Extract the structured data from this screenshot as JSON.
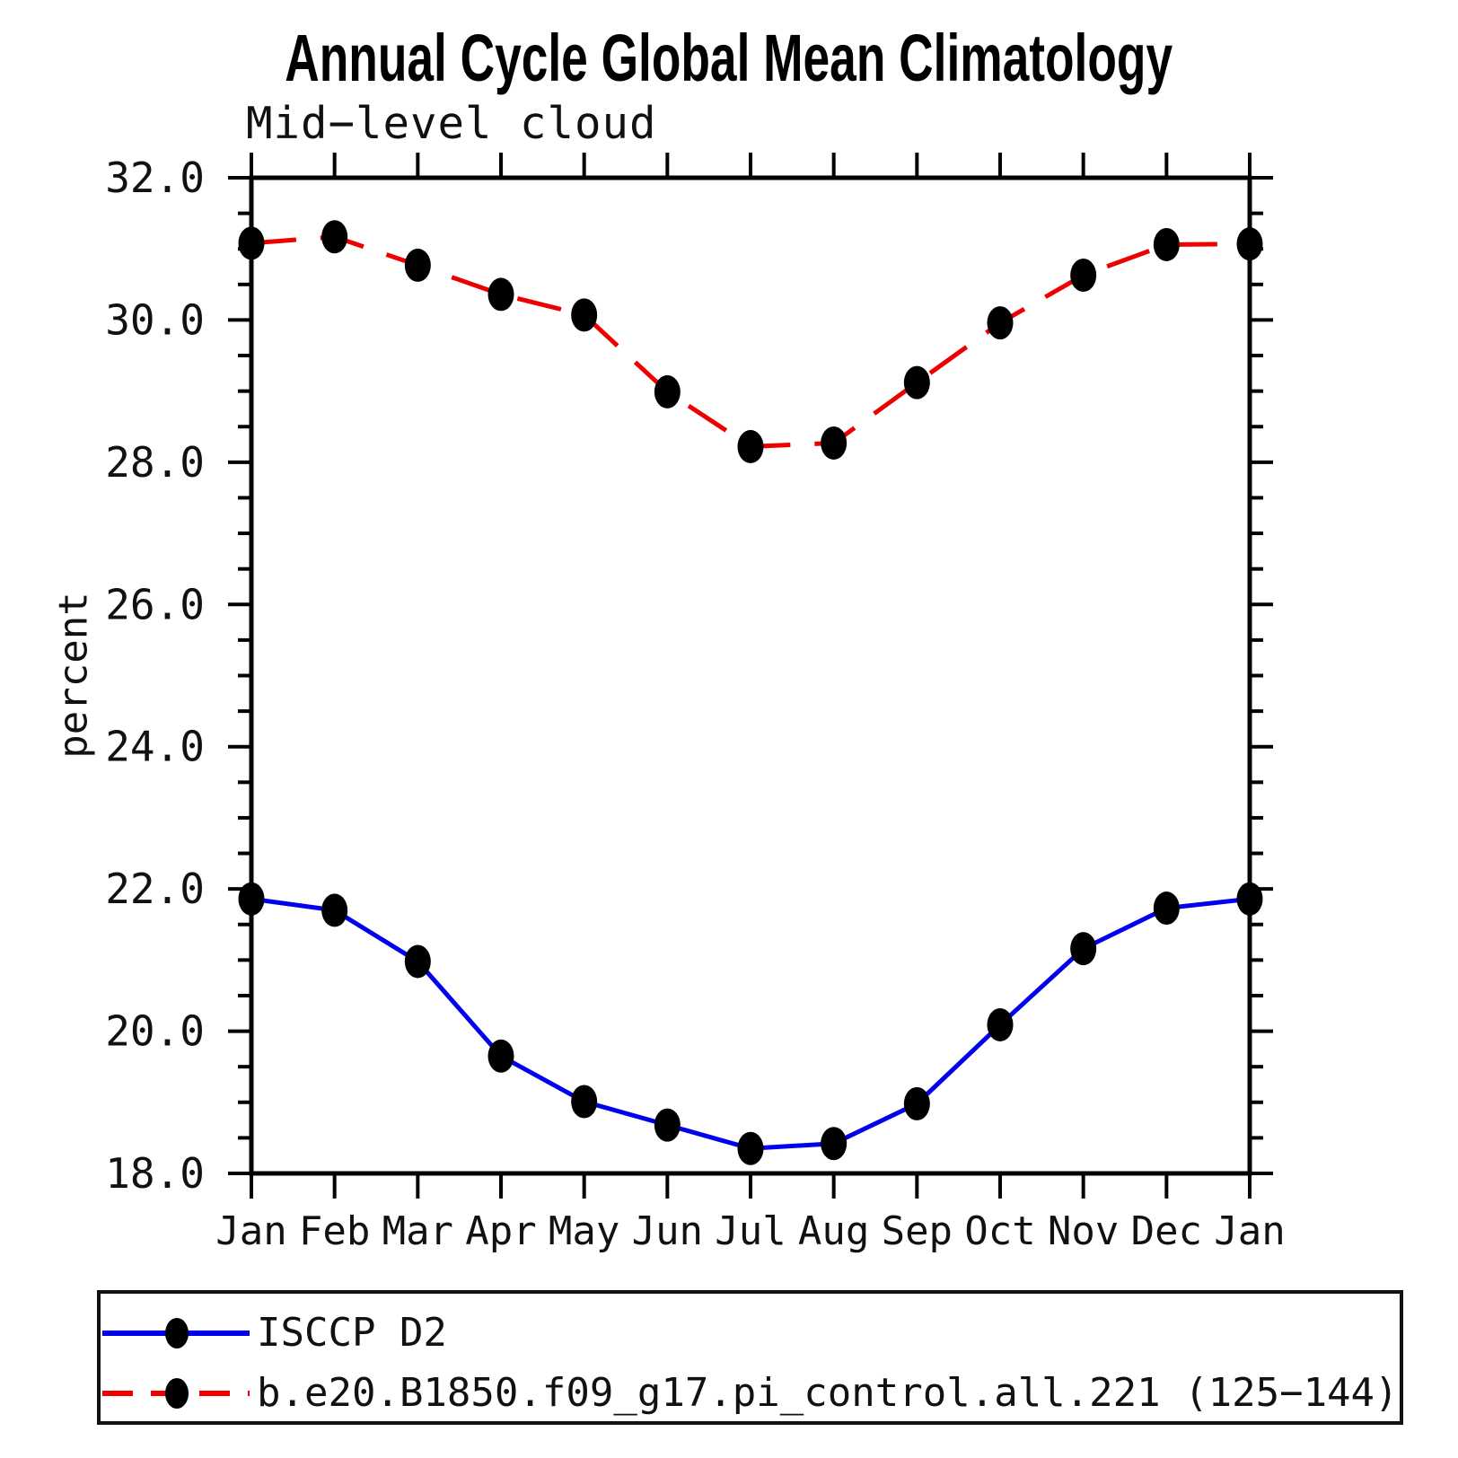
{
  "chart_data": {
    "type": "line",
    "title": "Annual Cycle Global Mean Climatology",
    "subtitle": "Mid−level cloud",
    "ylabel": "percent",
    "xlabel": "",
    "categories": [
      "Jan",
      "Feb",
      "Mar",
      "Apr",
      "May",
      "Jun",
      "Jul",
      "Aug",
      "Sep",
      "Oct",
      "Nov",
      "Dec",
      "Jan"
    ],
    "ylim": [
      18.0,
      32.0
    ],
    "ytick_major": [
      18.0,
      20.0,
      22.0,
      24.0,
      26.0,
      28.0,
      30.0,
      32.0
    ],
    "ytick_major_labels": [
      "18.0",
      "20.0",
      "22.0",
      "24.0",
      "26.0",
      "28.0",
      "30.0",
      "32.0"
    ],
    "ytick_minor_step": 0.5,
    "grid": "off",
    "legend_position": "bottom-left-box",
    "marker": "filled-circle",
    "marker_color": "#000000",
    "axis_color": "#000000",
    "background": "#ffffff",
    "series": [
      {
        "name": "ISCCP D2",
        "color": "#0000ee",
        "line_style": "solid",
        "values": [
          21.86,
          21.7,
          20.98,
          19.65,
          19.01,
          18.68,
          18.35,
          18.42,
          18.98,
          20.09,
          21.16,
          21.73,
          21.86
        ]
      },
      {
        "name": "b.e20.B1850.f09_g17.pi_control.all.221 (125−144)",
        "color": "#ee0000",
        "line_style": "dashed",
        "values": [
          31.08,
          31.17,
          30.77,
          30.36,
          30.07,
          28.99,
          28.22,
          28.27,
          29.12,
          29.96,
          30.63,
          31.06,
          31.07
        ]
      }
    ]
  }
}
